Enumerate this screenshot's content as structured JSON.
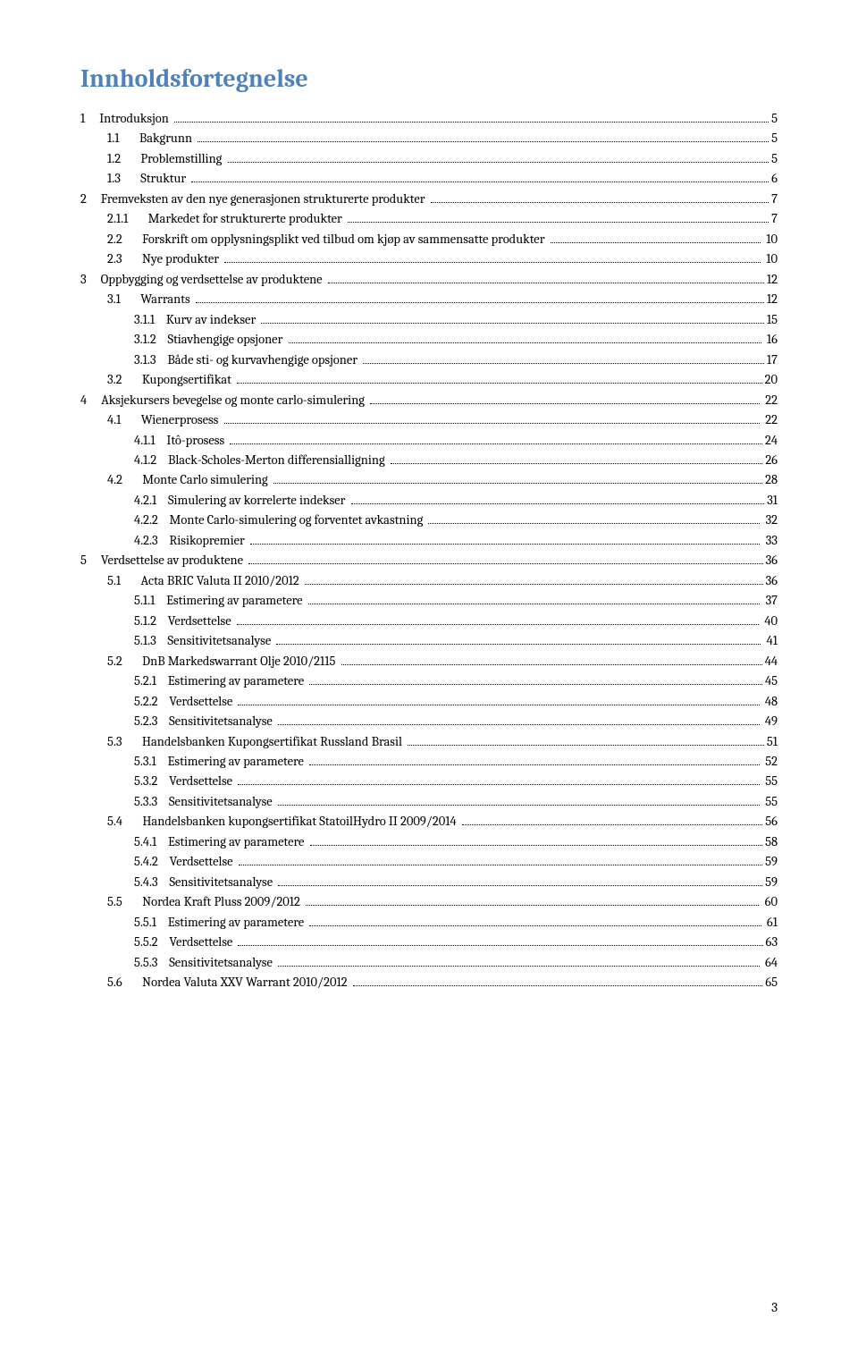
{
  "title": "Innholdsfortegnelse",
  "page_number": "3",
  "colors": {
    "title": "#4f81bd",
    "text": "#000000",
    "background": "#ffffff"
  },
  "typography": {
    "title_fontsize": 28,
    "body_fontsize": 14.5,
    "font_family": "Cambria"
  },
  "toc": [
    {
      "level": 0,
      "num": "1",
      "text": "Introduksjon",
      "page": "5"
    },
    {
      "level": 1,
      "num": "1.1",
      "text": "Bakgrunn",
      "page": "5"
    },
    {
      "level": 1,
      "num": "1.2",
      "text": "Problemstilling",
      "page": "5"
    },
    {
      "level": 1,
      "num": "1.3",
      "text": "Struktur",
      "page": "6"
    },
    {
      "level": 0,
      "num": "2",
      "text": "Fremveksten av den nye generasjonen strukturerte produkter",
      "page": "7"
    },
    {
      "level": 1,
      "num": "2.1.1",
      "text": "Markedet for strukturerte produkter",
      "page": "7"
    },
    {
      "level": 1,
      "num": "2.2",
      "text": "Forskrift om opplysningsplikt ved tilbud om kjøp av sammensatte produkter",
      "page": " 10"
    },
    {
      "level": 1,
      "num": "2.3",
      "text": "Nye produkter",
      "page": " 10"
    },
    {
      "level": 0,
      "num": "3",
      "text": "Oppbygging og verdsettelse av produktene",
      "page": "12"
    },
    {
      "level": 1,
      "num": "3.1",
      "text": "Warrants",
      "page": "12"
    },
    {
      "level": 2,
      "num": "3.1.1",
      "text": "Kurv av indekser",
      "page": "15"
    },
    {
      "level": 2,
      "num": "3.1.2",
      "text": "Stiavhengige opsjoner",
      "page": " 16"
    },
    {
      "level": 2,
      "num": "3.1.3",
      "text": "Både sti- og kurvavhengige opsjoner",
      "page": "17"
    },
    {
      "level": 1,
      "num": "3.2",
      "text": "Kupongsertifikat",
      "page": "20"
    },
    {
      "level": 0,
      "num": "4",
      "text": "Aksjekursers bevegelse og monte carlo-simulering",
      "page": " 22"
    },
    {
      "level": 1,
      "num": "4.1",
      "text": "Wienerprosess",
      "page": " 22"
    },
    {
      "level": 2,
      "num": "4.1.1",
      "text": "Itô-prosess",
      "page": "24"
    },
    {
      "level": 2,
      "num": "4.1.2",
      "text": "Black-Scholes-Merton differensialligning",
      "page": "26"
    },
    {
      "level": 1,
      "num": "4.2",
      "text": "Monte Carlo simulering",
      "page": "28"
    },
    {
      "level": 2,
      "num": "4.2.1",
      "text": "Simulering av korrelerte indekser",
      "page": "31"
    },
    {
      "level": 2,
      "num": "4.2.2",
      "text": "Monte Carlo-simulering og forventet avkastning",
      "page": " 32"
    },
    {
      "level": 2,
      "num": "4.2.3",
      "text": "Risikopremier",
      "page": " 33"
    },
    {
      "level": 0,
      "num": "5",
      "text": "Verdsettelse av produktene",
      "page": "36"
    },
    {
      "level": 1,
      "num": "5.1",
      "text": "Acta BRIC Valuta II 2010/2012",
      "page": "36"
    },
    {
      "level": 2,
      "num": "5.1.1",
      "text": "Estimering av parametere",
      "page": " 37"
    },
    {
      "level": 2,
      "num": "5.1.2",
      "text": "Verdsettelse",
      "page": " 40"
    },
    {
      "level": 2,
      "num": "5.1.3",
      "text": "Sensitivitetsanalyse",
      "page": " 41"
    },
    {
      "level": 1,
      "num": "5.2",
      "text": "DnB Markedswarrant Olje 2010/2115",
      "page": "44"
    },
    {
      "level": 2,
      "num": "5.2.1",
      "text": "Estimering av parametere",
      "page": "45"
    },
    {
      "level": 2,
      "num": "5.2.2",
      "text": "Verdsettelse",
      "page": " 48"
    },
    {
      "level": 2,
      "num": "5.2.3",
      "text": "Sensitivitetsanalyse",
      "page": " 49"
    },
    {
      "level": 1,
      "num": "5.3",
      "text": "Handelsbanken Kupongsertifikat Russland Brasil",
      "page": "51"
    },
    {
      "level": 2,
      "num": "5.3.1",
      "text": "Estimering av parametere",
      "page": " 52"
    },
    {
      "level": 2,
      "num": "5.3.2",
      "text": "Verdsettelse",
      "page": " 55"
    },
    {
      "level": 2,
      "num": "5.3.3",
      "text": "Sensitivitetsanalyse",
      "page": " 55"
    },
    {
      "level": 1,
      "num": "5.4",
      "text": "Handelsbanken kupongsertifikat StatoilHydro II 2009/2014",
      "page": "56"
    },
    {
      "level": 2,
      "num": "5.4.1",
      "text": "Estimering av parametere",
      "page": "58"
    },
    {
      "level": 2,
      "num": "5.4.2",
      "text": "Verdsettelse",
      "page": "59"
    },
    {
      "level": 2,
      "num": "5.4.3",
      "text": "Sensitivitetsanalyse",
      "page": "59"
    },
    {
      "level": 1,
      "num": "5.5",
      "text": "Nordea Kraft Pluss 2009/2012",
      "page": " 60"
    },
    {
      "level": 2,
      "num": "5.5.1",
      "text": "Estimering av parametere",
      "page": " 61"
    },
    {
      "level": 2,
      "num": "5.5.2",
      "text": "Verdsettelse",
      "page": "63"
    },
    {
      "level": 2,
      "num": "5.5.3",
      "text": "Sensitivitetsanalyse",
      "page": " 64"
    },
    {
      "level": 1,
      "num": "5.6",
      "text": "Nordea Valuta XXV Warrant 2010/2012",
      "page": "65"
    }
  ]
}
